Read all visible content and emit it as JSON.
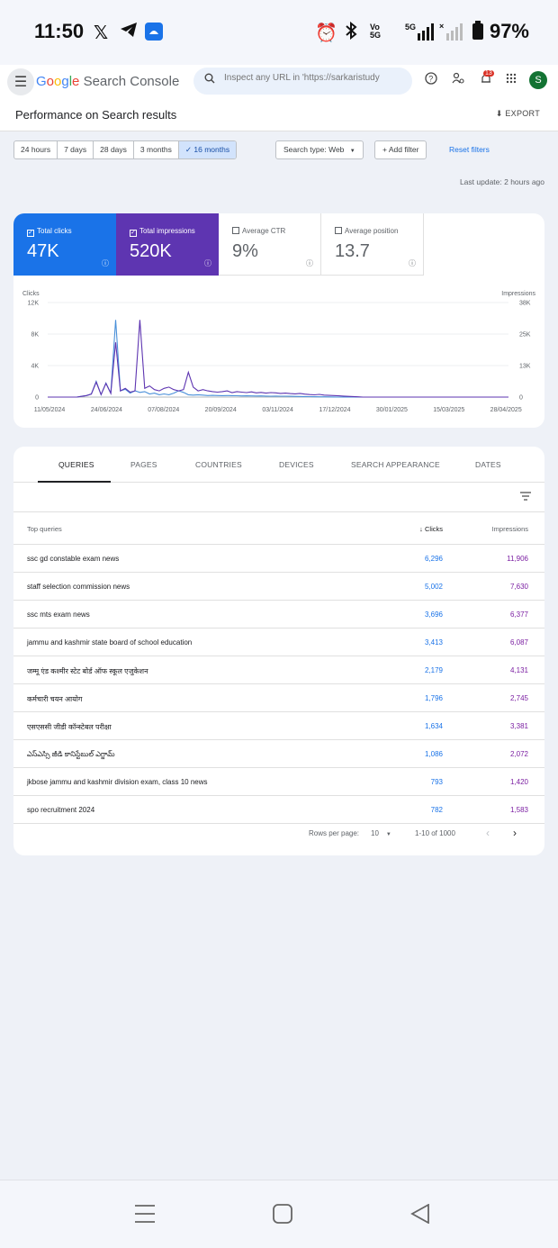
{
  "status_bar": {
    "time": "11:50",
    "battery": "97%",
    "network": "5G"
  },
  "header": {
    "logo_google": "Google",
    "logo_product": "Search Console",
    "search_placeholder": "Inspect any URL in 'https://sarkaristudy",
    "notification_count": "13",
    "avatar_letter": "S"
  },
  "page": {
    "title": "Performance on Search results",
    "export_label": "EXPORT"
  },
  "filters": {
    "ranges": [
      "24 hours",
      "7 days",
      "28 days",
      "3 months",
      "16 months"
    ],
    "selected_range": "16 months",
    "search_type": "Search type: Web",
    "add_filter": "Add filter",
    "reset": "Reset filters",
    "last_update": "Last update: 2 hours ago"
  },
  "metrics": [
    {
      "label": "Total clicks",
      "value": "47K",
      "checked": true,
      "color": "#1a73e8"
    },
    {
      "label": "Total impressions",
      "value": "520K",
      "checked": true,
      "color": "#5e35b1"
    },
    {
      "label": "Average CTR",
      "value": "9%",
      "checked": false
    },
    {
      "label": "Average position",
      "value": "13.7",
      "checked": false
    }
  ],
  "chart_data": {
    "type": "line",
    "left_axis_label": "Clicks",
    "right_axis_label": "Impressions",
    "left_ticks": [
      "12K",
      "8K",
      "4K",
      "0"
    ],
    "right_ticks": [
      "38K",
      "25K",
      "13K",
      "0"
    ],
    "ylim_left": [
      0,
      12000
    ],
    "ylim_right": [
      0,
      38000
    ],
    "x_ticks": [
      "11/05/2024",
      "24/06/2024",
      "07/08/2024",
      "20/09/2024",
      "03/11/2024",
      "17/12/2024",
      "30/01/2025",
      "15/03/2025",
      "28/04/2025"
    ],
    "series": [
      {
        "name": "Clicks",
        "color": "#4a90d9",
        "values": [
          0,
          0,
          0,
          0,
          0,
          0,
          0,
          100,
          200,
          400,
          2000,
          300,
          1800,
          500,
          9800,
          800,
          1000,
          500,
          800,
          600,
          700,
          400,
          500,
          300,
          400,
          300,
          500,
          800,
          600,
          300,
          250,
          300,
          250,
          200,
          220,
          200,
          180,
          200,
          180,
          170,
          150,
          160,
          150,
          140,
          150,
          130,
          120,
          130,
          120,
          110,
          100,
          90,
          80,
          70,
          60,
          50,
          40,
          30,
          20,
          10,
          0,
          0,
          0,
          0,
          0,
          0,
          0,
          0,
          0,
          0,
          0,
          0,
          0,
          0,
          0,
          0,
          0,
          0,
          0,
          0,
          0,
          0,
          0,
          0,
          0,
          0,
          0,
          0,
          0,
          0,
          0,
          0,
          0,
          0,
          0,
          0
        ]
      },
      {
        "name": "Impressions",
        "color": "#5e35b1",
        "values": [
          0,
          0,
          0,
          0,
          0,
          0,
          0,
          300,
          600,
          1200,
          6000,
          1000,
          5500,
          1500,
          22000,
          2500,
          3500,
          2000,
          2500,
          31000,
          3500,
          4500,
          3000,
          2500,
          3500,
          4000,
          3000,
          2500,
          3000,
          10000,
          4000,
          2500,
          3000,
          2500,
          2200,
          2000,
          2200,
          2500,
          1800,
          2200,
          2000,
          1800,
          2100,
          1700,
          1900,
          1600,
          1800,
          1700,
          1500,
          1600,
          1400,
          1300,
          1500,
          1200,
          1000,
          900,
          1100,
          800,
          700,
          600,
          500,
          400,
          300,
          200,
          100,
          0,
          0,
          0,
          0,
          0,
          0,
          0,
          0,
          0,
          0,
          0,
          0,
          0,
          0,
          0,
          0,
          0,
          0,
          0,
          0,
          0,
          0,
          0,
          0,
          0,
          0,
          0,
          0,
          0,
          0,
          0
        ]
      }
    ]
  },
  "tabs": [
    "QUERIES",
    "PAGES",
    "COUNTRIES",
    "DEVICES",
    "SEARCH APPEARANCE",
    "DATES"
  ],
  "active_tab": "QUERIES",
  "table": {
    "headers": {
      "query": "Top queries",
      "clicks": "Clicks",
      "impressions": "Impressions"
    },
    "rows": [
      {
        "query": "ssc gd constable exam news",
        "clicks": "6,296",
        "impressions": "11,906"
      },
      {
        "query": "staff selection commission news",
        "clicks": "5,002",
        "impressions": "7,630"
      },
      {
        "query": "ssc mts exam news",
        "clicks": "3,696",
        "impressions": "6,377"
      },
      {
        "query": "jammu and kashmir state board of school education",
        "clicks": "3,413",
        "impressions": "6,087"
      },
      {
        "query": "जम्मू एंड कश्मीर स्टेट बोर्ड ऑफ स्कूल एजुकेशन",
        "clicks": "2,179",
        "impressions": "4,131"
      },
      {
        "query": "कर्मचारी चयन आयोग",
        "clicks": "1,796",
        "impressions": "2,745"
      },
      {
        "query": "एसएससी जीडी कॉन्स्टेबल परीक्षा",
        "clicks": "1,634",
        "impressions": "3,381"
      },
      {
        "query": "ఎస్ఎస్సి జీడి కానిస్టేబుల్ ఎగ్జామ్",
        "clicks": "1,086",
        "impressions": "2,072"
      },
      {
        "query": "jkbose jammu and kashmir division exam, class 10 news",
        "clicks": "793",
        "impressions": "1,420"
      },
      {
        "query": "spo recruitment 2024",
        "clicks": "782",
        "impressions": "1,583"
      }
    ],
    "rows_per_page_label": "Rows per page:",
    "rows_per_page": "10",
    "range_label": "1-10 of 1000"
  }
}
